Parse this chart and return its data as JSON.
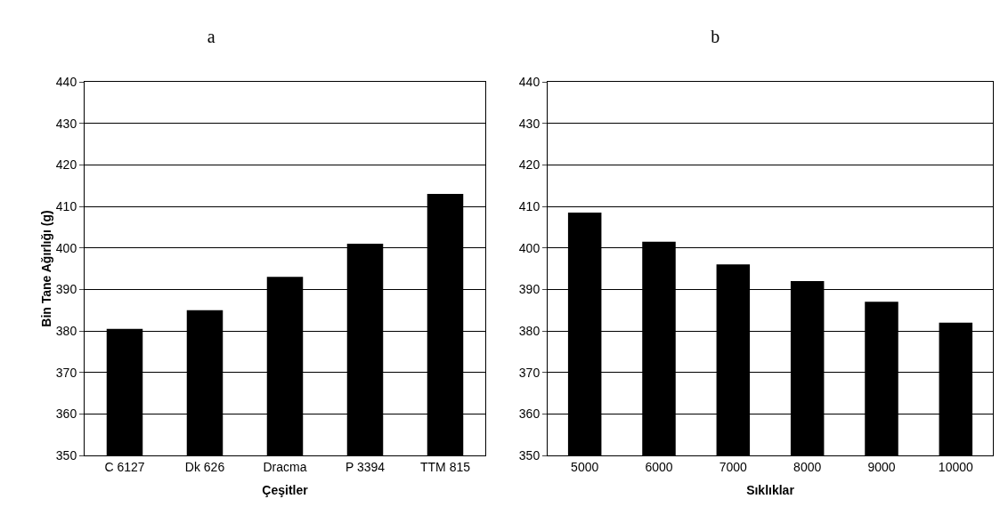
{
  "chart_data": [
    {
      "type": "bar",
      "title": "a",
      "xlabel": "Çeşitler",
      "ylabel": "Bin Tane Ağırlığı (g)",
      "categories": [
        "C 6127",
        "Dk 626",
        "Dracma",
        "P 3394",
        "TTM 815"
      ],
      "color": "#000000",
      "values": [
        380.5,
        385,
        393,
        401,
        413
      ],
      "ylim": [
        350,
        440
      ],
      "yticks": [
        350,
        360,
        370,
        380,
        390,
        400,
        410,
        420,
        430,
        440
      ],
      "grid": "y"
    },
    {
      "type": "bar",
      "title": "b",
      "xlabel": "Sıklıklar",
      "categories": [
        "5000",
        "6000",
        "7000",
        "8000",
        "9000",
        "10000"
      ],
      "color": "#000000",
      "values": [
        408.5,
        401.5,
        396,
        392,
        387,
        382
      ],
      "ylim": [
        350,
        440
      ],
      "yticks": [
        350,
        360,
        370,
        380,
        390,
        400,
        410,
        420,
        430,
        440
      ],
      "grid": "y"
    }
  ]
}
